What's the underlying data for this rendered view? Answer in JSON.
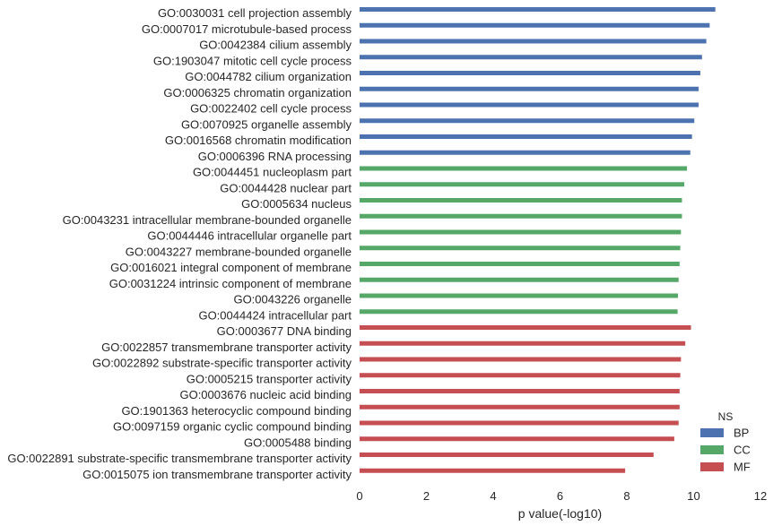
{
  "chart_data": {
    "type": "bar",
    "orientation": "horizontal",
    "xlabel": "p value(-log10)",
    "xlim": [
      0,
      12
    ],
    "xticks": [
      0,
      2,
      4,
      6,
      8,
      10,
      12
    ],
    "grid": false,
    "legend": {
      "title": "NS",
      "placement": "bottom-right",
      "entries": [
        {
          "name": "BP",
          "color": "#4C72B0"
        },
        {
          "name": "CC",
          "color": "#55A868"
        },
        {
          "name": "MF",
          "color": "#C44E52"
        }
      ]
    },
    "bars": [
      {
        "label": "GO:0030031 cell projection assembly",
        "value": 10.65,
        "ns": "BP"
      },
      {
        "label": "GO:0007017 microtubule-based process",
        "value": 10.48,
        "ns": "BP"
      },
      {
        "label": "GO:0042384 cilium assembly",
        "value": 10.38,
        "ns": "BP"
      },
      {
        "label": "GO:1903047 mitotic cell cycle process",
        "value": 10.25,
        "ns": "BP"
      },
      {
        "label": "GO:0044782 cilium organization",
        "value": 10.2,
        "ns": "BP"
      },
      {
        "label": "GO:0006325 chromatin organization",
        "value": 10.15,
        "ns": "BP"
      },
      {
        "label": "GO:0022402 cell cycle process",
        "value": 10.15,
        "ns": "BP"
      },
      {
        "label": "GO:0070925 organelle assembly",
        "value": 10.02,
        "ns": "BP"
      },
      {
        "label": "GO:0016568 chromatin modification",
        "value": 9.95,
        "ns": "BP"
      },
      {
        "label": "GO:0006396 RNA processing",
        "value": 9.9,
        "ns": "BP"
      },
      {
        "label": "GO:0044451 nucleoplasm part",
        "value": 9.8,
        "ns": "CC"
      },
      {
        "label": "GO:0044428 nuclear part",
        "value": 9.72,
        "ns": "CC"
      },
      {
        "label": "GO:0005634 nucleus",
        "value": 9.65,
        "ns": "CC"
      },
      {
        "label": "GO:0043231 intracellular membrane-bounded organelle",
        "value": 9.65,
        "ns": "CC"
      },
      {
        "label": "GO:0044446 intracellular organelle part",
        "value": 9.62,
        "ns": "CC"
      },
      {
        "label": "GO:0043227 membrane-bounded organelle",
        "value": 9.6,
        "ns": "CC"
      },
      {
        "label": "GO:0016021 integral component of membrane",
        "value": 9.58,
        "ns": "CC"
      },
      {
        "label": "GO:0031224 intrinsic component of membrane",
        "value": 9.55,
        "ns": "CC"
      },
      {
        "label": "GO:0043226 organelle",
        "value": 9.53,
        "ns": "CC"
      },
      {
        "label": "GO:0044424 intracellular part",
        "value": 9.52,
        "ns": "CC"
      },
      {
        "label": "GO:0003677 DNA binding",
        "value": 9.92,
        "ns": "MF"
      },
      {
        "label": "GO:0022857 transmembrane transporter activity",
        "value": 9.75,
        "ns": "MF"
      },
      {
        "label": "GO:0022892 substrate-specific transporter activity",
        "value": 9.62,
        "ns": "MF"
      },
      {
        "label": "GO:0005215 transporter activity",
        "value": 9.6,
        "ns": "MF"
      },
      {
        "label": "GO:0003676 nucleic acid binding",
        "value": 9.58,
        "ns": "MF"
      },
      {
        "label": "GO:1901363 heterocyclic compound binding",
        "value": 9.58,
        "ns": "MF"
      },
      {
        "label": "GO:0097159 organic cyclic compound binding",
        "value": 9.55,
        "ns": "MF"
      },
      {
        "label": "GO:0005488 binding",
        "value": 9.42,
        "ns": "MF"
      },
      {
        "label": "GO:0022891 substrate-specific transmembrane transporter activity",
        "value": 8.8,
        "ns": "MF"
      },
      {
        "label": "GO:0015075 ion transmembrane transporter activity",
        "value": 7.95,
        "ns": "MF"
      }
    ]
  }
}
